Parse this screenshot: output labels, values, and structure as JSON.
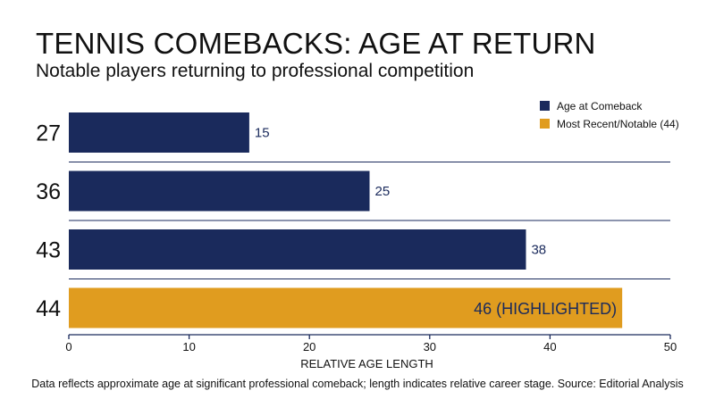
{
  "title": "TENNIS COMEBACKS: AGE AT RETURN",
  "subtitle": "Notable players returning to professional competition",
  "legend": [
    {
      "label": "Age at Comeback",
      "color": "#1a2a5c"
    },
    {
      "label": "Most Recent/Notable (44)",
      "color": "#e09c1f"
    }
  ],
  "footnote": "Data reflects approximate age at significant professional comeback; length indicates relative career stage. Source: Editorial Analysis",
  "chart_data": {
    "type": "bar",
    "orientation": "horizontal",
    "categories": [
      "27",
      "36",
      "43",
      "44"
    ],
    "values": [
      15,
      25,
      38,
      46
    ],
    "data_labels": [
      "15",
      "25",
      "38",
      "46 (HIGHLIGHTED)"
    ],
    "highlighted_index": 3,
    "colors": {
      "default": "#1a2a5c",
      "highlight": "#e09c1f"
    },
    "xlabel": "RELATIVE AGE LENGTH",
    "xlim": [
      0,
      50
    ],
    "xticks": [
      0,
      10,
      20,
      30,
      40,
      50
    ],
    "legend_position": "top-right",
    "grid": false
  }
}
